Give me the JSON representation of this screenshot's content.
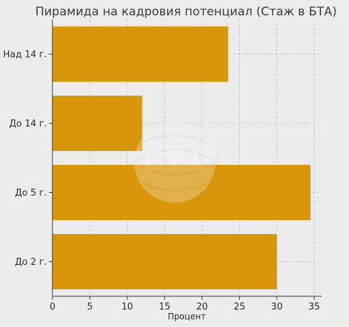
{
  "chart_data": {
    "type": "bar",
    "orientation": "horizontal",
    "title": "Пирамида на кадровия потенциал (Стаж в БТА)",
    "xlabel": "Процент",
    "ylabel": "",
    "categories": [
      "Над 14 г.",
      "До 14 г.",
      "До 5 г.",
      "До 2 г."
    ],
    "values": [
      23.5,
      12,
      34.5,
      30
    ],
    "xlim": [
      0,
      36
    ],
    "xticks": [
      0,
      5,
      10,
      15,
      20,
      25,
      30,
      35
    ],
    "grid": true,
    "bar_color": "#d9960a"
  },
  "watermark": {
    "icon": "bta-globe-logo",
    "text": "БТА"
  }
}
